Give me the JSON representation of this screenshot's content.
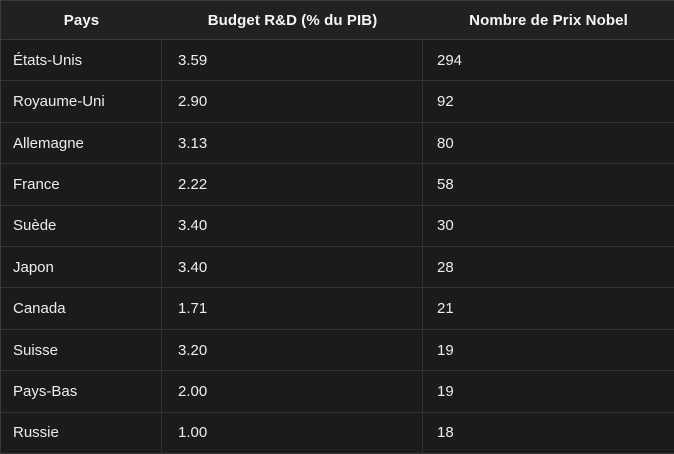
{
  "table": {
    "columns": [
      {
        "key": "pays",
        "label": "Pays"
      },
      {
        "key": "budget",
        "label": "Budget R&D (% du PIB)"
      },
      {
        "key": "nobel",
        "label": "Nombre de Prix Nobel"
      }
    ],
    "rows": [
      {
        "pays": "États-Unis",
        "budget": "3.59",
        "nobel": "294"
      },
      {
        "pays": "Royaume-Uni",
        "budget": "2.90",
        "nobel": "92"
      },
      {
        "pays": "Allemagne",
        "budget": "3.13",
        "nobel": "80"
      },
      {
        "pays": "France",
        "budget": "2.22",
        "nobel": "58"
      },
      {
        "pays": "Suède",
        "budget": "3.40",
        "nobel": "30"
      },
      {
        "pays": "Japon",
        "budget": "3.40",
        "nobel": "28"
      },
      {
        "pays": "Canada",
        "budget": "1.71",
        "nobel": "21"
      },
      {
        "pays": "Suisse",
        "budget": "3.20",
        "nobel": "19"
      },
      {
        "pays": "Pays-Bas",
        "budget": "2.00",
        "nobel": "19"
      },
      {
        "pays": "Russie",
        "budget": "1.00",
        "nobel": "18"
      }
    ]
  },
  "chart_data": {
    "type": "table",
    "title": "",
    "columns": [
      "Pays",
      "Budget R&D (% du PIB)",
      "Nombre de Prix Nobel"
    ],
    "rows": [
      [
        "États-Unis",
        3.59,
        294
      ],
      [
        "Royaume-Uni",
        2.9,
        92
      ],
      [
        "Allemagne",
        3.13,
        80
      ],
      [
        "France",
        2.22,
        58
      ],
      [
        "Suède",
        3.4,
        30
      ],
      [
        "Japon",
        3.4,
        28
      ],
      [
        "Canada",
        1.71,
        21
      ],
      [
        "Suisse",
        3.2,
        19
      ],
      [
        "Pays-Bas",
        2.0,
        19
      ],
      [
        "Russie",
        1.0,
        18
      ]
    ]
  },
  "colors": {
    "page_background": "#161616",
    "header_background": "#212121",
    "row_background": "#1b1b1b",
    "border": "#3a3a3a",
    "header_text": "#f5f5f5",
    "body_text": "#ededed"
  }
}
